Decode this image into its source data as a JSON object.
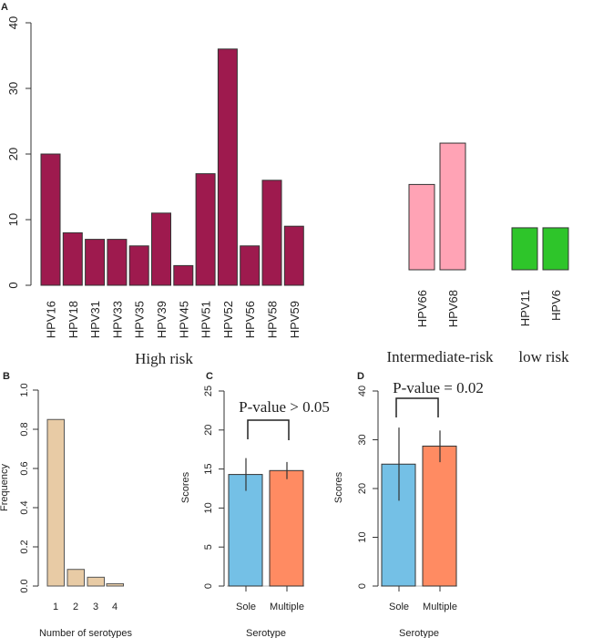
{
  "chart_data": [
    {
      "panel": "A",
      "type": "bar",
      "ylim": [
        0,
        40
      ],
      "yticks": [
        "0",
        "10",
        "20",
        "30",
        "40"
      ],
      "groups": [
        {
          "label": "High risk",
          "color": "#9e1a4e",
          "categories": [
            "HPV16",
            "HPV18",
            "HPV31",
            "HPV33",
            "HPV35",
            "HPV39",
            "HPV45",
            "HPV51",
            "HPV52",
            "HPV56",
            "HPV58",
            "HPV59"
          ],
          "values": [
            20,
            8,
            7,
            7,
            6,
            11,
            3,
            17,
            36,
            6,
            16,
            9
          ]
        },
        {
          "label": "Intermediate-risk",
          "color": "#ffa3b5",
          "categories": [
            "HPV66",
            "HPV68"
          ],
          "values": [
            13,
            19.3
          ]
        },
        {
          "label": "low risk",
          "color": "#2ec52a",
          "categories": [
            "HPV11",
            "HPV6"
          ],
          "values": [
            6.4,
            6.4
          ]
        }
      ]
    },
    {
      "panel": "B",
      "type": "bar",
      "xlabel": "Number of serotypes",
      "ylabel": "Frequency",
      "ylim": [
        0,
        1
      ],
      "yticks": [
        "0.0",
        "0.2",
        "0.4",
        "0.6",
        "0.8",
        "1.0"
      ],
      "categories": [
        "1",
        "2",
        "3",
        "4"
      ],
      "values": [
        0.85,
        0.085,
        0.045,
        0.012
      ],
      "color": "#e8cba5"
    },
    {
      "panel": "C",
      "type": "bar",
      "xlabel": "Serotype",
      "ylabel": "Scores",
      "ylim": [
        0,
        25
      ],
      "yticks": [
        "0",
        "5",
        "10",
        "15",
        "20",
        "25"
      ],
      "categories": [
        "Sole",
        "Multiple"
      ],
      "values": [
        14.3,
        14.8
      ],
      "error_low": [
        12.2,
        13.7
      ],
      "error_high": [
        16.4,
        15.9
      ],
      "colors": [
        "#74c0e6",
        "#ff8b62"
      ],
      "annotation": "P-value > 0.05"
    },
    {
      "panel": "D",
      "type": "bar",
      "xlabel": "Serotype",
      "ylabel": "Scores",
      "ylim": [
        0,
        40
      ],
      "yticks": [
        "0",
        "10",
        "20",
        "30",
        "40"
      ],
      "categories": [
        "Sole",
        "Multiple"
      ],
      "values": [
        25.0,
        28.7
      ],
      "error_low": [
        17.5,
        25.4
      ],
      "error_high": [
        32.5,
        31.9
      ],
      "colors": [
        "#74c0e6",
        "#ff8b62"
      ],
      "annotation": "P-value = 0.02"
    }
  ]
}
